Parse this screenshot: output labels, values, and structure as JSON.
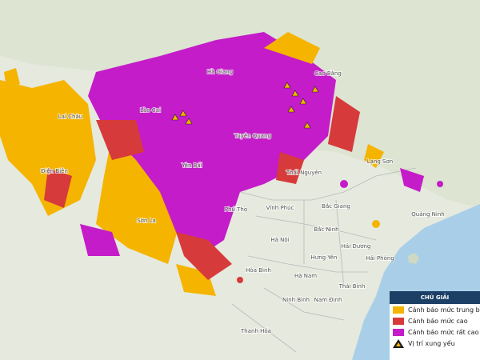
{
  "map": {
    "places": [
      {
        "label": "Lai Châu"
      },
      {
        "label": "Điện Biên"
      },
      {
        "label": "Lào Cai"
      },
      {
        "label": "Yên Bái"
      },
      {
        "label": "Sơn La"
      },
      {
        "label": "Hà Giang"
      },
      {
        "label": "Cao Bằng"
      },
      {
        "label": "Tuyên Quang"
      },
      {
        "label": "Thái Nguyên"
      },
      {
        "label": "Lạng Sơn"
      },
      {
        "label": "Bắc Giang"
      },
      {
        "label": "Phú Thọ"
      },
      {
        "label": "Vĩnh Phúc"
      },
      {
        "label": "Hà Nội"
      },
      {
        "label": "Bắc Ninh"
      },
      {
        "label": "Hưng Yên"
      },
      {
        "label": "Hải Dương"
      },
      {
        "label": "Hải Phòng"
      },
      {
        "label": "Quảng Ninh"
      },
      {
        "label": "Hòa Bình"
      },
      {
        "label": "Thái Bình"
      },
      {
        "label": "Nam Định"
      },
      {
        "label": "Ninh Bình"
      },
      {
        "label": "Hà Nam"
      },
      {
        "label": "Thanh Hóa"
      }
    ],
    "legend": {
      "title": "CHÚ GIẢI",
      "items": [
        {
          "label": "Cảnh báo mức trung bình",
          "color": "#f5b400"
        },
        {
          "label": "Cảnh báo mức cao",
          "color": "#d63a3a"
        },
        {
          "label": "Cảnh báo mức rất cao",
          "color": "#c41cc8"
        },
        {
          "label": "Vị trí xung yếu",
          "color": "#1a1a1a"
        }
      ]
    }
  }
}
